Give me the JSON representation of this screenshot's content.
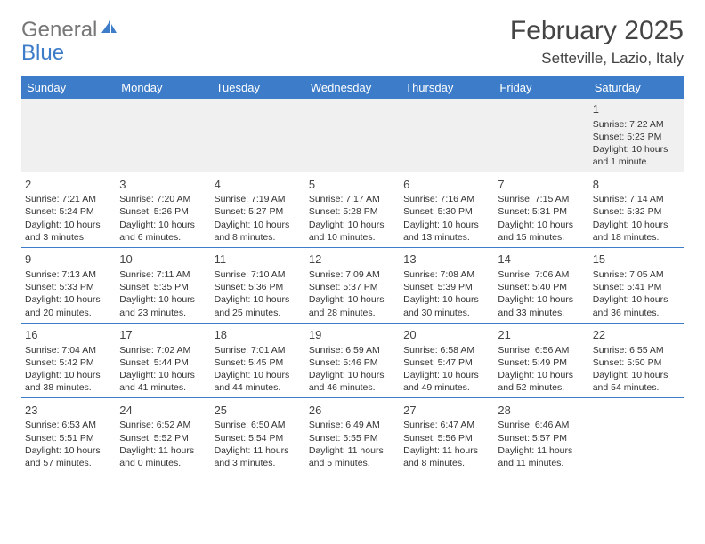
{
  "logo": {
    "text1": "General",
    "text2": "Blue"
  },
  "title": "February 2025",
  "location": "Setteville, Lazio, Italy",
  "colors": {
    "accent": "#3d7cc9",
    "gray": "#f0f0f0",
    "text": "#333333"
  },
  "days_of_week": [
    "Sunday",
    "Monday",
    "Tuesday",
    "Wednesday",
    "Thursday",
    "Friday",
    "Saturday"
  ],
  "weeks": [
    [
      null,
      null,
      null,
      null,
      null,
      null,
      {
        "n": "1",
        "sr": "Sunrise: 7:22 AM",
        "ss": "Sunset: 5:23 PM",
        "dl": "Daylight: 10 hours and 1 minute."
      }
    ],
    [
      {
        "n": "2",
        "sr": "Sunrise: 7:21 AM",
        "ss": "Sunset: 5:24 PM",
        "dl": "Daylight: 10 hours and 3 minutes."
      },
      {
        "n": "3",
        "sr": "Sunrise: 7:20 AM",
        "ss": "Sunset: 5:26 PM",
        "dl": "Daylight: 10 hours and 6 minutes."
      },
      {
        "n": "4",
        "sr": "Sunrise: 7:19 AM",
        "ss": "Sunset: 5:27 PM",
        "dl": "Daylight: 10 hours and 8 minutes."
      },
      {
        "n": "5",
        "sr": "Sunrise: 7:17 AM",
        "ss": "Sunset: 5:28 PM",
        "dl": "Daylight: 10 hours and 10 minutes."
      },
      {
        "n": "6",
        "sr": "Sunrise: 7:16 AM",
        "ss": "Sunset: 5:30 PM",
        "dl": "Daylight: 10 hours and 13 minutes."
      },
      {
        "n": "7",
        "sr": "Sunrise: 7:15 AM",
        "ss": "Sunset: 5:31 PM",
        "dl": "Daylight: 10 hours and 15 minutes."
      },
      {
        "n": "8",
        "sr": "Sunrise: 7:14 AM",
        "ss": "Sunset: 5:32 PM",
        "dl": "Daylight: 10 hours and 18 minutes."
      }
    ],
    [
      {
        "n": "9",
        "sr": "Sunrise: 7:13 AM",
        "ss": "Sunset: 5:33 PM",
        "dl": "Daylight: 10 hours and 20 minutes."
      },
      {
        "n": "10",
        "sr": "Sunrise: 7:11 AM",
        "ss": "Sunset: 5:35 PM",
        "dl": "Daylight: 10 hours and 23 minutes."
      },
      {
        "n": "11",
        "sr": "Sunrise: 7:10 AM",
        "ss": "Sunset: 5:36 PM",
        "dl": "Daylight: 10 hours and 25 minutes."
      },
      {
        "n": "12",
        "sr": "Sunrise: 7:09 AM",
        "ss": "Sunset: 5:37 PM",
        "dl": "Daylight: 10 hours and 28 minutes."
      },
      {
        "n": "13",
        "sr": "Sunrise: 7:08 AM",
        "ss": "Sunset: 5:39 PM",
        "dl": "Daylight: 10 hours and 30 minutes."
      },
      {
        "n": "14",
        "sr": "Sunrise: 7:06 AM",
        "ss": "Sunset: 5:40 PM",
        "dl": "Daylight: 10 hours and 33 minutes."
      },
      {
        "n": "15",
        "sr": "Sunrise: 7:05 AM",
        "ss": "Sunset: 5:41 PM",
        "dl": "Daylight: 10 hours and 36 minutes."
      }
    ],
    [
      {
        "n": "16",
        "sr": "Sunrise: 7:04 AM",
        "ss": "Sunset: 5:42 PM",
        "dl": "Daylight: 10 hours and 38 minutes."
      },
      {
        "n": "17",
        "sr": "Sunrise: 7:02 AM",
        "ss": "Sunset: 5:44 PM",
        "dl": "Daylight: 10 hours and 41 minutes."
      },
      {
        "n": "18",
        "sr": "Sunrise: 7:01 AM",
        "ss": "Sunset: 5:45 PM",
        "dl": "Daylight: 10 hours and 44 minutes."
      },
      {
        "n": "19",
        "sr": "Sunrise: 6:59 AM",
        "ss": "Sunset: 5:46 PM",
        "dl": "Daylight: 10 hours and 46 minutes."
      },
      {
        "n": "20",
        "sr": "Sunrise: 6:58 AM",
        "ss": "Sunset: 5:47 PM",
        "dl": "Daylight: 10 hours and 49 minutes."
      },
      {
        "n": "21",
        "sr": "Sunrise: 6:56 AM",
        "ss": "Sunset: 5:49 PM",
        "dl": "Daylight: 10 hours and 52 minutes."
      },
      {
        "n": "22",
        "sr": "Sunrise: 6:55 AM",
        "ss": "Sunset: 5:50 PM",
        "dl": "Daylight: 10 hours and 54 minutes."
      }
    ],
    [
      {
        "n": "23",
        "sr": "Sunrise: 6:53 AM",
        "ss": "Sunset: 5:51 PM",
        "dl": "Daylight: 10 hours and 57 minutes."
      },
      {
        "n": "24",
        "sr": "Sunrise: 6:52 AM",
        "ss": "Sunset: 5:52 PM",
        "dl": "Daylight: 11 hours and 0 minutes."
      },
      {
        "n": "25",
        "sr": "Sunrise: 6:50 AM",
        "ss": "Sunset: 5:54 PM",
        "dl": "Daylight: 11 hours and 3 minutes."
      },
      {
        "n": "26",
        "sr": "Sunrise: 6:49 AM",
        "ss": "Sunset: 5:55 PM",
        "dl": "Daylight: 11 hours and 5 minutes."
      },
      {
        "n": "27",
        "sr": "Sunrise: 6:47 AM",
        "ss": "Sunset: 5:56 PM",
        "dl": "Daylight: 11 hours and 8 minutes."
      },
      {
        "n": "28",
        "sr": "Sunrise: 6:46 AM",
        "ss": "Sunset: 5:57 PM",
        "dl": "Daylight: 11 hours and 11 minutes."
      },
      null
    ]
  ]
}
